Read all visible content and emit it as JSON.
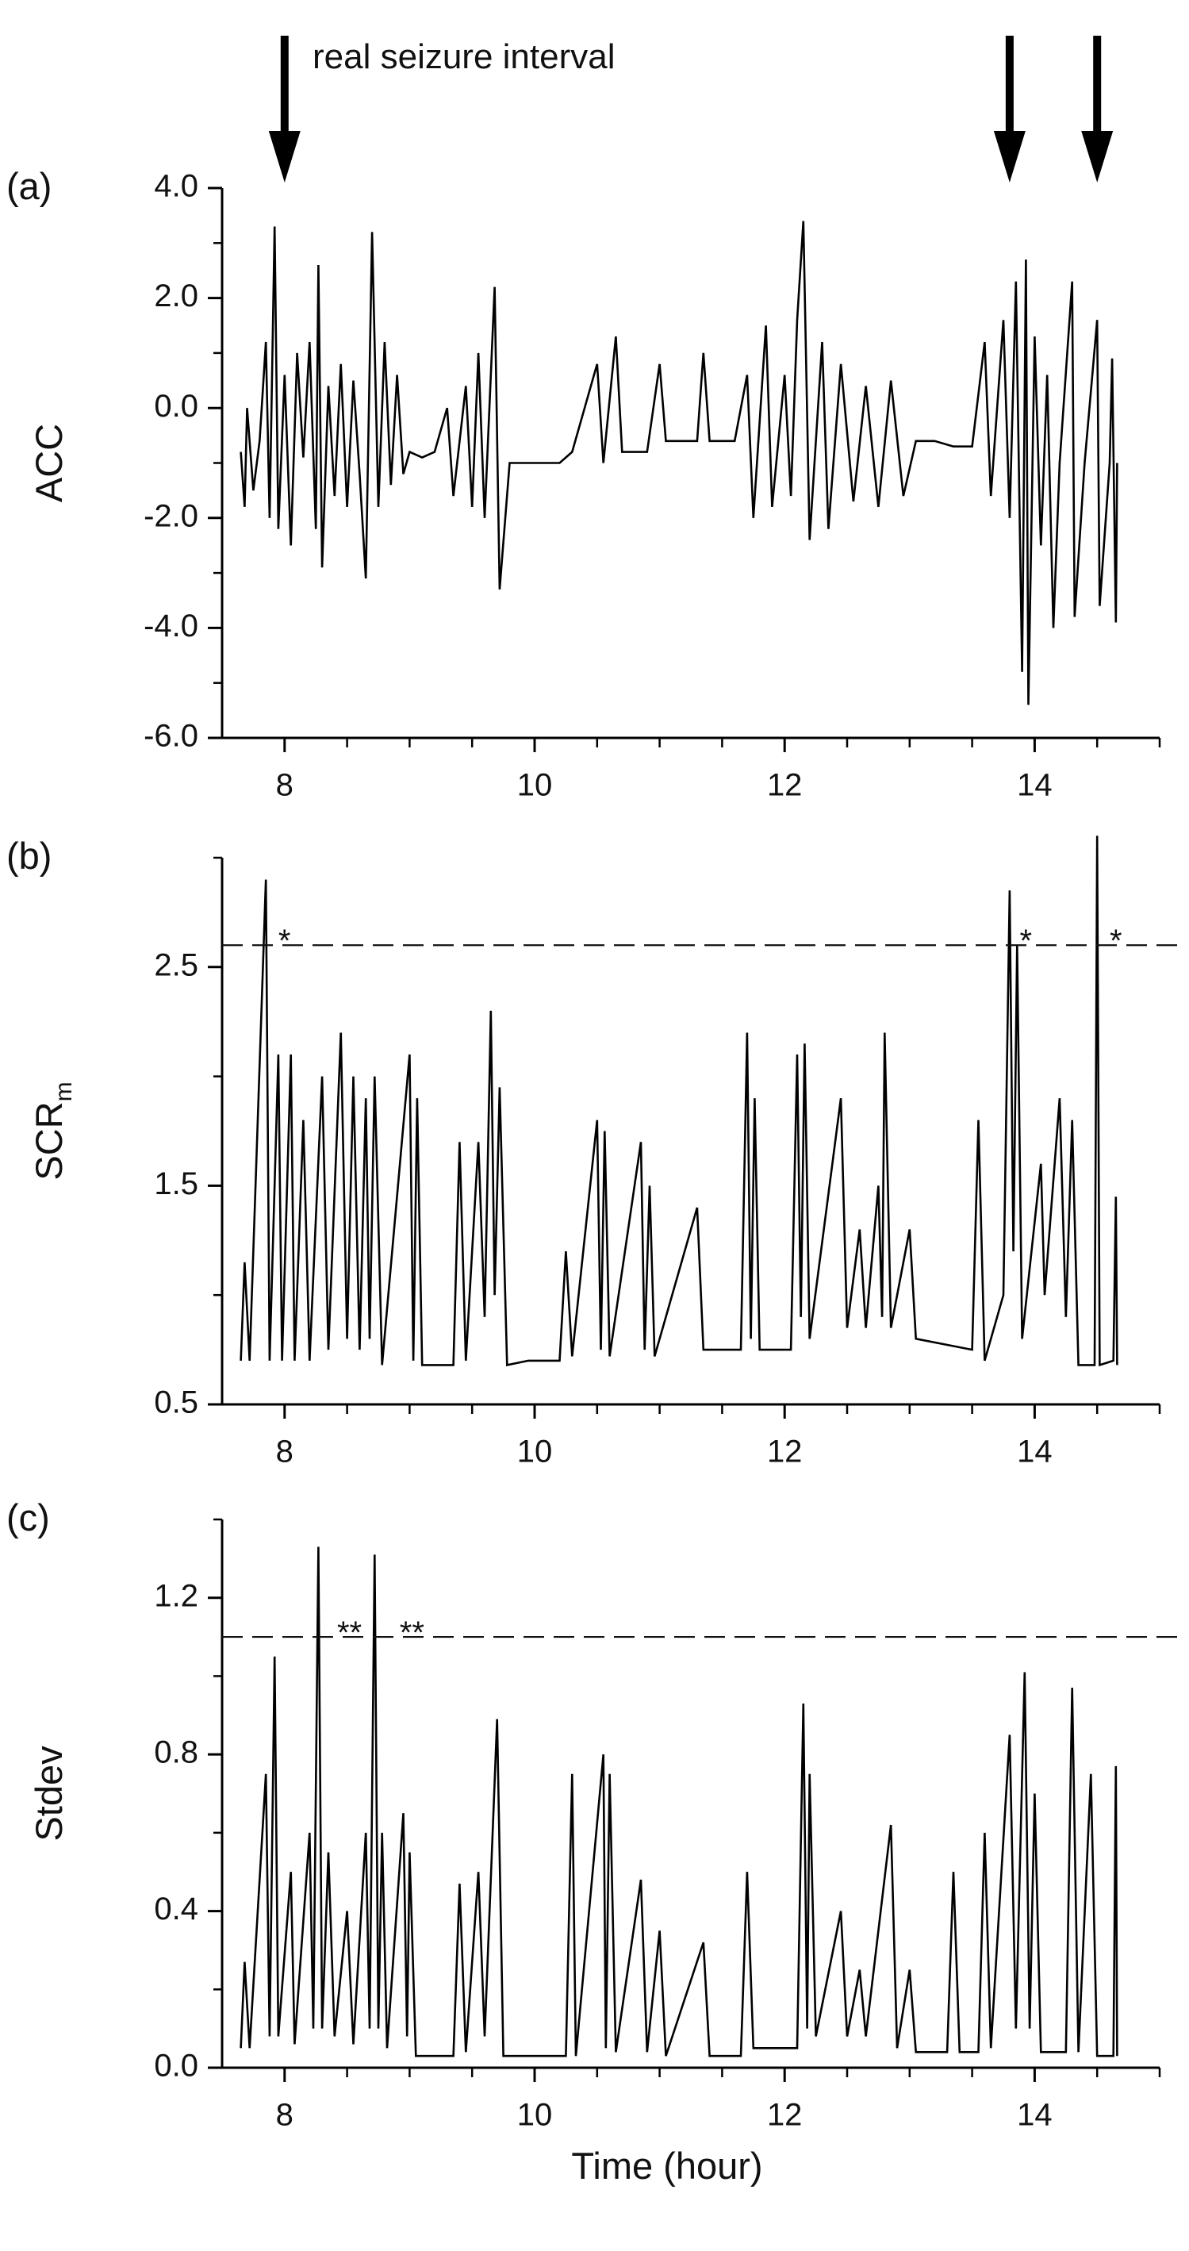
{
  "chart_data": [
    {
      "type": "line",
      "panel_label": "(a)",
      "ylabel": "ACC",
      "annotation": "real seizure interval",
      "arrows_x": [
        8.0,
        13.8,
        14.5
      ],
      "color": "#000000",
      "xlim": [
        7.5,
        15
      ],
      "xticks": [
        8,
        10,
        12,
        14
      ],
      "xminorticks": [
        8.5,
        9,
        9.5,
        10.5,
        11,
        11.5,
        12.5,
        13,
        13.5,
        14.5,
        15
      ],
      "ylim": [
        -6,
        4
      ],
      "yticks": [
        {
          "value": -6,
          "label": "-6.0"
        },
        {
          "value": -4,
          "label": "-4.0"
        },
        {
          "value": -2,
          "label": "-2.0"
        },
        {
          "value": 0,
          "label": "0.0"
        },
        {
          "value": 2,
          "label": "2.0"
        },
        {
          "value": 4,
          "label": "4.0"
        }
      ],
      "yminorticks": [
        -5,
        -3,
        -1,
        1,
        3
      ],
      "x": [
        7.65,
        7.68,
        7.7,
        7.75,
        7.8,
        7.85,
        7.88,
        7.92,
        7.95,
        8.0,
        8.05,
        8.1,
        8.15,
        8.2,
        8.25,
        8.27,
        8.3,
        8.35,
        8.4,
        8.45,
        8.5,
        8.55,
        8.6,
        8.65,
        8.7,
        8.75,
        8.8,
        8.85,
        8.9,
        8.95,
        9.0,
        9.1,
        9.2,
        9.3,
        9.35,
        9.45,
        9.5,
        9.55,
        9.6,
        9.68,
        9.72,
        9.8,
        10.0,
        10.2,
        10.3,
        10.5,
        10.55,
        10.65,
        10.7,
        10.9,
        11.0,
        11.05,
        11.3,
        11.35,
        11.4,
        11.6,
        11.7,
        11.75,
        11.85,
        11.9,
        12.0,
        12.05,
        12.1,
        12.15,
        12.2,
        12.3,
        12.35,
        12.45,
        12.55,
        12.65,
        12.75,
        12.85,
        12.95,
        13.05,
        13.2,
        13.35,
        13.5,
        13.6,
        13.65,
        13.75,
        13.8,
        13.85,
        13.9,
        13.93,
        13.95,
        14.0,
        14.05,
        14.1,
        14.15,
        14.2,
        14.3,
        14.32,
        14.4,
        14.5,
        14.52,
        14.6,
        14.62,
        14.65,
        14.66
      ],
      "values": [
        -0.8,
        -1.8,
        0.0,
        -1.5,
        -0.6,
        1.2,
        -2.0,
        3.3,
        -2.2,
        0.6,
        -2.5,
        1.0,
        -0.9,
        1.2,
        -2.2,
        2.6,
        -2.9,
        0.4,
        -1.6,
        0.8,
        -1.8,
        0.5,
        -1.2,
        -3.1,
        3.2,
        -1.8,
        1.2,
        -1.4,
        0.6,
        -1.2,
        -0.8,
        -0.9,
        -0.8,
        0.0,
        -1.6,
        0.4,
        -1.8,
        1.0,
        -2.0,
        2.2,
        -3.3,
        -1.0,
        -1.0,
        -1.0,
        -0.8,
        0.8,
        -1.0,
        1.3,
        -0.8,
        -0.8,
        0.8,
        -0.6,
        -0.6,
        1.0,
        -0.6,
        -0.6,
        0.6,
        -2.0,
        1.5,
        -1.8,
        0.6,
        -1.6,
        1.6,
        3.4,
        -2.4,
        1.2,
        -2.2,
        0.8,
        -1.7,
        0.4,
        -1.8,
        0.5,
        -1.6,
        -0.6,
        -0.6,
        -0.7,
        -0.7,
        1.2,
        -1.6,
        1.6,
        -2.0,
        2.3,
        -4.8,
        2.7,
        -5.4,
        1.3,
        -2.5,
        0.6,
        -4.0,
        -1.0,
        2.3,
        -3.8,
        -1.0,
        1.6,
        -3.6,
        -1.0,
        0.9,
        -3.9,
        -1.0
      ]
    },
    {
      "type": "line",
      "panel_label": "(b)",
      "ylabel": "SCR",
      "ylabel_subscript": "m",
      "color": "#000000",
      "threshold": 2.6,
      "annotations": [
        {
          "text": "*",
          "x": 7.95
        },
        {
          "text": "*",
          "x": 13.88
        },
        {
          "text": "*",
          "x": 14.6
        }
      ],
      "xlim": [
        7.5,
        15
      ],
      "xticks": [
        8,
        10,
        12,
        14
      ],
      "xminorticks": [
        8.5,
        9,
        9.5,
        10.5,
        11,
        11.5,
        12.5,
        13,
        13.5,
        14.5,
        15
      ],
      "ylim": [
        0.5,
        3.0
      ],
      "yticks": [
        0.5,
        1.5,
        2.5
      ],
      "yminorticks": [
        1.0,
        2.0,
        3.0
      ],
      "x": [
        7.65,
        7.68,
        7.72,
        7.85,
        7.88,
        7.95,
        7.98,
        8.05,
        8.08,
        8.15,
        8.2,
        8.3,
        8.35,
        8.45,
        8.5,
        8.55,
        8.6,
        8.65,
        8.68,
        8.72,
        8.78,
        9.0,
        9.03,
        9.06,
        9.1,
        9.35,
        9.4,
        9.45,
        9.55,
        9.6,
        9.65,
        9.68,
        9.72,
        9.78,
        9.95,
        10.2,
        10.25,
        10.3,
        10.5,
        10.53,
        10.56,
        10.6,
        10.85,
        10.88,
        10.92,
        10.96,
        11.3,
        11.35,
        11.65,
        11.7,
        11.73,
        11.76,
        11.8,
        12.05,
        12.1,
        12.13,
        12.16,
        12.2,
        12.45,
        12.5,
        12.6,
        12.65,
        12.75,
        12.78,
        12.8,
        12.85,
        13.0,
        13.05,
        13.5,
        13.55,
        13.6,
        13.75,
        13.8,
        13.83,
        13.86,
        13.9,
        14.05,
        14.08,
        14.2,
        14.25,
        14.3,
        14.35,
        14.48,
        14.5,
        14.52,
        14.63,
        14.65,
        14.66
      ],
      "values": [
        0.7,
        1.15,
        0.7,
        2.9,
        0.7,
        2.1,
        0.7,
        2.1,
        0.7,
        1.8,
        0.7,
        2.0,
        0.75,
        2.2,
        0.8,
        2.0,
        0.75,
        1.9,
        0.8,
        2.0,
        0.68,
        2.1,
        0.7,
        1.9,
        0.68,
        0.68,
        1.7,
        0.7,
        1.7,
        0.9,
        2.3,
        1.0,
        1.95,
        0.68,
        0.7,
        0.7,
        1.2,
        0.72,
        1.8,
        0.75,
        1.75,
        0.72,
        1.7,
        0.75,
        1.5,
        0.72,
        1.4,
        0.75,
        0.75,
        2.2,
        0.8,
        1.9,
        0.75,
        0.75,
        2.1,
        0.9,
        2.15,
        0.8,
        1.9,
        0.85,
        1.3,
        0.85,
        1.5,
        0.9,
        2.2,
        0.85,
        1.3,
        0.8,
        0.75,
        1.8,
        0.7,
        1.0,
        2.85,
        1.2,
        2.6,
        0.8,
        1.6,
        1.0,
        1.9,
        0.9,
        1.8,
        0.68,
        0.68,
        3.1,
        0.68,
        0.7,
        1.45,
        0.68
      ]
    },
    {
      "type": "line",
      "panel_label": "(c)",
      "ylabel": "Stdev",
      "xlabel": "Time (hour)",
      "color": "#000000",
      "threshold": 1.1,
      "annotations": [
        {
          "text": "**",
          "x": 8.42
        },
        {
          "text": "**",
          "x": 8.92
        }
      ],
      "xlim": [
        7.5,
        15
      ],
      "xticks": [
        8,
        10,
        12,
        14
      ],
      "xminorticks": [
        8.5,
        9,
        9.5,
        10.5,
        11,
        11.5,
        12.5,
        13,
        13.5,
        14.5,
        15
      ],
      "ylim": [
        0,
        1.4
      ],
      "yticks": [
        {
          "value": 0,
          "label": "0.0"
        },
        {
          "value": 0.4,
          "label": "0.4"
        },
        {
          "value": 0.8,
          "label": "0.8"
        },
        {
          "value": 1.2,
          "label": "1.2"
        }
      ],
      "yminorticks": [
        0.2,
        0.6,
        1.0,
        1.4
      ],
      "x": [
        7.65,
        7.68,
        7.72,
        7.85,
        7.88,
        7.92,
        7.95,
        8.05,
        8.08,
        8.2,
        8.23,
        8.27,
        8.3,
        8.35,
        8.4,
        8.5,
        8.55,
        8.65,
        8.68,
        8.72,
        8.75,
        8.78,
        8.82,
        8.95,
        8.98,
        9.0,
        9.05,
        9.35,
        9.4,
        9.45,
        9.55,
        9.6,
        9.7,
        9.75,
        10.25,
        10.3,
        10.33,
        10.55,
        10.57,
        10.6,
        10.65,
        10.85,
        10.9,
        11.0,
        11.05,
        11.35,
        11.4,
        11.65,
        11.7,
        11.75,
        12.1,
        12.15,
        12.18,
        12.2,
        12.25,
        12.45,
        12.5,
        12.6,
        12.65,
        12.85,
        12.9,
        13.0,
        13.05,
        13.3,
        13.35,
        13.4,
        13.55,
        13.6,
        13.65,
        13.8,
        13.85,
        13.92,
        13.96,
        14.0,
        14.05,
        14.25,
        14.3,
        14.35,
        14.45,
        14.5,
        14.63,
        14.65,
        14.66
      ],
      "values": [
        0.05,
        0.27,
        0.05,
        0.75,
        0.08,
        1.05,
        0.08,
        0.5,
        0.06,
        0.6,
        0.1,
        1.33,
        0.1,
        0.55,
        0.08,
        0.4,
        0.06,
        0.6,
        0.1,
        1.31,
        0.1,
        0.6,
        0.05,
        0.65,
        0.08,
        0.55,
        0.03,
        0.03,
        0.47,
        0.04,
        0.5,
        0.08,
        0.89,
        0.03,
        0.03,
        0.75,
        0.03,
        0.8,
        0.05,
        0.75,
        0.04,
        0.48,
        0.04,
        0.35,
        0.03,
        0.32,
        0.03,
        0.03,
        0.5,
        0.05,
        0.05,
        0.93,
        0.1,
        0.75,
        0.08,
        0.4,
        0.08,
        0.25,
        0.08,
        0.62,
        0.05,
        0.25,
        0.04,
        0.04,
        0.5,
        0.04,
        0.04,
        0.6,
        0.05,
        0.85,
        0.1,
        1.01,
        0.1,
        0.7,
        0.04,
        0.04,
        0.97,
        0.04,
        0.75,
        0.03,
        0.03,
        0.77,
        0.03
      ]
    }
  ]
}
